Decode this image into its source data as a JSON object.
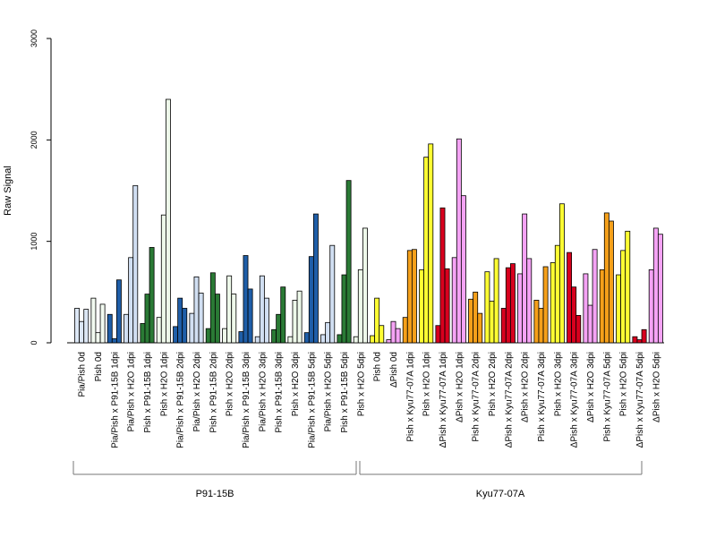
{
  "chart_data": {
    "type": "bar",
    "ylabel": "Raw Signal",
    "ylim": [
      0,
      3000
    ],
    "yticks": [
      0,
      1000,
      2000,
      3000
    ],
    "grid": false,
    "legend": "none",
    "categories": [
      "Pia/Pish 0d",
      "Pish 0d",
      "Pia/Pish x P91-15B 1dpi",
      "Pia/Pish x H2O 1dpi",
      "Pish x P91-15B 1dpi",
      "Pish x H2O 1dpi",
      "Pia/Pish x P91-15B 2dpi",
      "Pia/Pish x H2O 2dpi",
      "Pish x P91-15B 2dpi",
      "Pish x H2O 2dpi",
      "Pia/Pish x P91-15B 3dpi",
      "Pia/Pish x H2O 3dpi",
      "Pish x P91-15B 3dpi",
      "Pish x H2O 3dpi",
      "Pia/Pish x P91-15B 5dpi",
      "Pia/Pish x H2O 5dpi",
      "Pish x P91-15B 5dpi",
      "Pish x H2O 5dpi",
      "Pish 0d",
      "ΔPish 0d",
      "Pish x Kyu77-07A 1dpi",
      "Pish x H2O 1dpi",
      "ΔPish x Kyu77-07A 1dpi",
      "ΔPish x H2O 1dpi",
      "Pish x Kyu77-07A 2dpi",
      "Pish x H2O 2dpi",
      "ΔPish x Kyu77-07A 2dpi",
      "ΔPish x H2O 2dpi",
      "Pish x Kyu77-07A 3dpi",
      "Pish x H2O 3dpi",
      "ΔPish x Kyu77-07A 3dpi",
      "ΔPish x H2O 3dpi",
      "Pish x Kyu77-07A 5dpi",
      "Pish x H2O 5dpi",
      "ΔPish x Kyu77-07A 5dpi",
      "ΔPish x H2O 5dpi"
    ],
    "values": [
      [
        340,
        210,
        330
      ],
      [
        440,
        100,
        380
      ],
      [
        280,
        40,
        620
      ],
      [
        280,
        840,
        1550
      ],
      [
        190,
        480,
        940
      ],
      [
        250,
        1260,
        2400
      ],
      [
        160,
        440,
        340
      ],
      [
        290,
        650,
        490
      ],
      [
        140,
        690,
        480
      ],
      [
        140,
        660,
        480
      ],
      [
        110,
        860,
        530
      ],
      [
        60,
        660,
        440
      ],
      [
        130,
        280,
        550
      ],
      [
        60,
        420,
        510
      ],
      [
        100,
        850,
        1270
      ],
      [
        80,
        200,
        960
      ],
      [
        80,
        670,
        1600
      ],
      [
        60,
        720,
        1130
      ],
      [
        70,
        440,
        170
      ],
      [
        30,
        210,
        140
      ],
      [
        250,
        910,
        920
      ],
      [
        720,
        1830,
        1960
      ],
      [
        170,
        1330,
        730
      ],
      [
        840,
        2010,
        1450
      ],
      [
        430,
        500,
        290
      ],
      [
        700,
        410,
        830
      ],
      [
        340,
        740,
        780
      ],
      [
        680,
        1270,
        830
      ],
      [
        420,
        340,
        750
      ],
      [
        790,
        960,
        1370
      ],
      [
        890,
        550,
        270
      ],
      [
        680,
        370,
        920
      ],
      [
        720,
        1280,
        1200
      ],
      [
        670,
        910,
        1100
      ],
      [
        60,
        30,
        130
      ],
      [
        720,
        1130,
        1070
      ]
    ],
    "colors": [
      "#dce7f5",
      "#f2faf0",
      "#1f5ea8",
      "#d1dff2",
      "#2a7a35",
      "#eef9ea",
      "#1f5ea8",
      "#d1dff2",
      "#2a7a35",
      "#eef9ea",
      "#1f5ea8",
      "#d1dff2",
      "#2a7a35",
      "#eef9ea",
      "#1f5ea8",
      "#d1dff2",
      "#2a7a35",
      "#eef9ea",
      "#ffff33",
      "#f5a3f5",
      "#f5a01a",
      "#ffff33",
      "#d8001e",
      "#f5a3f5",
      "#f5a01a",
      "#ffff33",
      "#d8001e",
      "#f5a3f5",
      "#f5a01a",
      "#ffff33",
      "#d8001e",
      "#f5a3f5",
      "#f5a01a",
      "#ffff33",
      "#d8001e",
      "#f5a3f5"
    ],
    "groups": [
      {
        "label": "P91-15B"
      },
      {
        "label": "Kyu77-07A"
      }
    ]
  }
}
